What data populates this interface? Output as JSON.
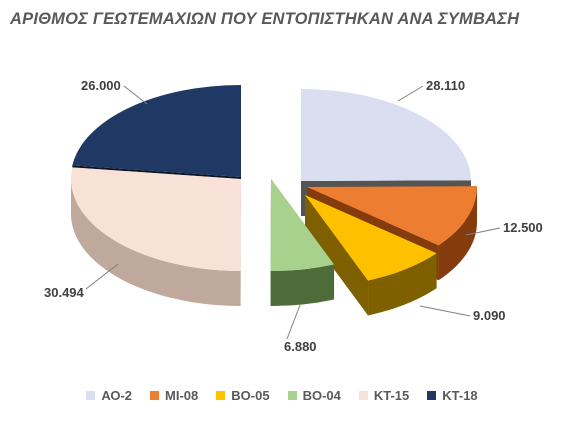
{
  "chart_data": {
    "type": "pie",
    "title": "ΑΡΙΘΜΟΣ ΓΕΩΤΕΜΑΧΙΩΝ ΠΟΥ ΕΝΤΟΠΙΣΤΗΚΑΝ ΑΝΑ ΣΥΜΒΑΣΗ",
    "legend_position": "bottom",
    "categories": [
      "ΑΟ-2",
      "ΜΙ-08",
      "ΒΟ-05",
      "ΒΟ-04",
      "ΚΤ-15",
      "ΚΤ-18"
    ],
    "values": [
      28110,
      12500,
      9090,
      6880,
      30494,
      26000
    ],
    "value_labels": [
      "28.110",
      "12.500",
      "9.090",
      "6.880",
      "30.494",
      "26.000"
    ],
    "colors": [
      "#D9DFF0",
      "#ED7D31",
      "#FFC000",
      "#A9D18E",
      "#F8E1D6",
      "#1F3864"
    ],
    "side_colors": [
      "#545454",
      "#843C0C",
      "#7F6000",
      "#4E6B3A",
      "#BFA89C",
      "#0B1628"
    ],
    "style": "3d-exploded"
  }
}
